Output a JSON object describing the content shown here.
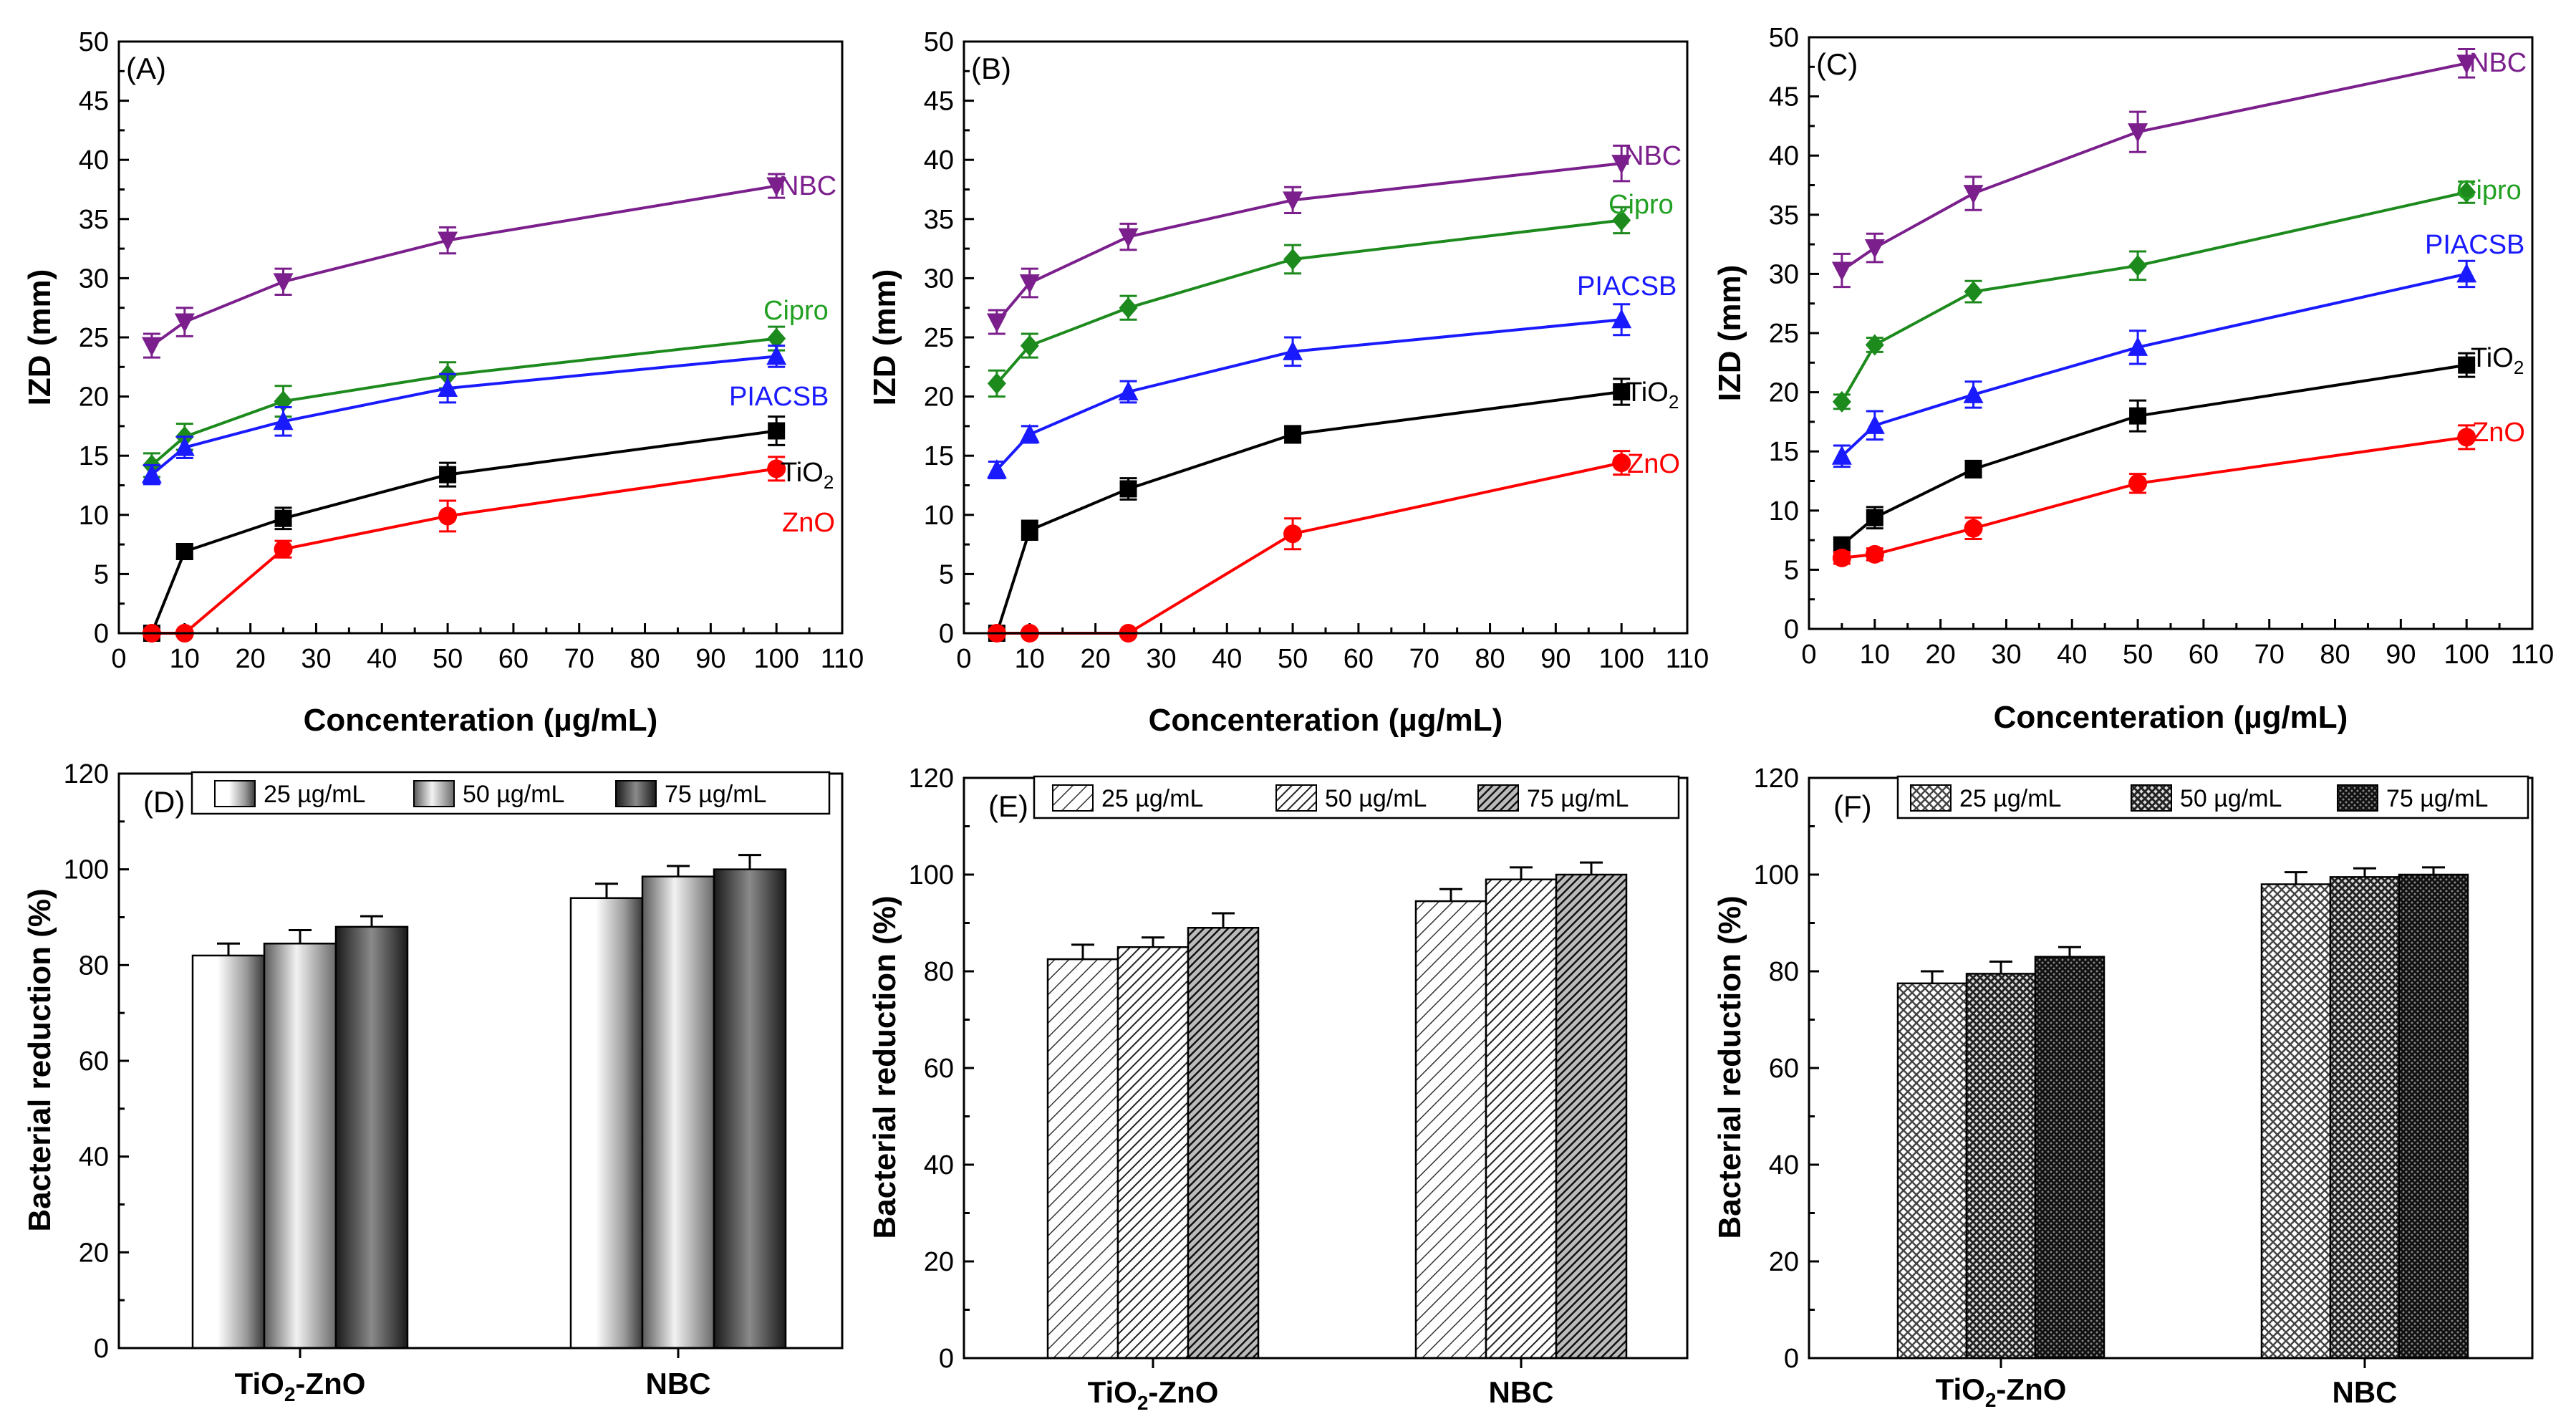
{
  "line_panels": [
    {
      "panel_label": "(A)",
      "ylabel": "IZD (mm)",
      "xlabel": "Concenteration (µg/mL)",
      "yticks": [
        "0",
        "5",
        "10",
        "15",
        "20",
        "25",
        "30",
        "35",
        "40",
        "45",
        "50"
      ],
      "xticks": [
        "0",
        "10",
        "20",
        "30",
        "40",
        "50",
        "60",
        "70",
        "80",
        "90",
        "100",
        "110"
      ],
      "series_labels": [
        "NBC",
        "Cipro",
        "PIACSB",
        "TiO",
        "ZnO"
      ]
    },
    {
      "panel_label": "(B)",
      "ylabel": "IZD (mm)",
      "xlabel": "Concenteration (µg/mL)",
      "yticks": [
        "0",
        "5",
        "10",
        "15",
        "20",
        "25",
        "30",
        "35",
        "40",
        "45",
        "50"
      ],
      "xticks": [
        "0",
        "10",
        "20",
        "30",
        "40",
        "50",
        "60",
        "70",
        "80",
        "90",
        "100",
        "110"
      ],
      "series_labels": [
        "NBC",
        "Cipro",
        "PIACSB",
        "TiO",
        "ZnO"
      ]
    },
    {
      "panel_label": "(C)",
      "ylabel": "IZD (mm)",
      "xlabel": "Concenteration (µg/mL)",
      "yticks": [
        "0",
        "5",
        "10",
        "15",
        "20",
        "25",
        "30",
        "35",
        "40",
        "45",
        "50"
      ],
      "xticks": [
        "0",
        "10",
        "20",
        "30",
        "40",
        "50",
        "60",
        "70",
        "80",
        "90",
        "100",
        "110"
      ],
      "series_labels": [
        "NBC",
        "Cipro",
        "PIACSB",
        "TiO",
        "ZnO"
      ]
    }
  ],
  "bar_panels": [
    {
      "panel_label": "(D)",
      "ylabel": "Bacterial reduction (%)",
      "yticks": [
        "0",
        "20",
        "40",
        "60",
        "80",
        "100",
        "120"
      ],
      "categories": [
        "TiO",
        "NBC"
      ],
      "category_parts": [
        {
          "base": "TiO",
          "sub": "2",
          "rest": "-ZnO"
        },
        {
          "base": "NBC",
          "sub": "",
          "rest": ""
        }
      ],
      "legend": [
        "25 µg/mL",
        "50 µg/mL",
        "75 µg/mL"
      ]
    },
    {
      "panel_label": "(E)",
      "ylabel": "Bacterial reduction (%)",
      "yticks": [
        "0",
        "20",
        "40",
        "60",
        "80",
        "100",
        "120"
      ],
      "categories": [
        "TiO",
        "NBC"
      ],
      "category_parts": [
        {
          "base": "TiO",
          "sub": "2",
          "rest": "-ZnO"
        },
        {
          "base": "NBC",
          "sub": "",
          "rest": ""
        }
      ],
      "legend": [
        "25 µg/mL",
        "50 µg/mL",
        "75 µg/mL"
      ]
    },
    {
      "panel_label": "(F)",
      "ylabel": "Bacterial reduction (%)",
      "yticks": [
        "0",
        "20",
        "40",
        "60",
        "80",
        "100",
        "120"
      ],
      "categories": [
        "TiO",
        "NBC"
      ],
      "category_parts": [
        {
          "base": "TiO",
          "sub": "2",
          "rest": "-ZnO"
        },
        {
          "base": "NBC",
          "sub": "",
          "rest": ""
        }
      ],
      "legend": [
        "25 µg/mL",
        "50 µg/mL",
        "75 µg/mL"
      ]
    }
  ],
  "colors": {
    "NBC": "#7b1f8c",
    "Cipro": "#1d8a1d",
    "PIACSB": "#1a1aff",
    "TiO2": "#000000",
    "ZnO": "#ff0000",
    "Cipro_label": "#22a022"
  },
  "chart_data": [
    {
      "type": "line",
      "panel": "(A)",
      "xlabel": "Concenteration (µg/mL)",
      "ylabel": "IZD (mm)",
      "xlim": [
        0,
        110
      ],
      "ylim": [
        0,
        50
      ],
      "x": [
        5,
        10,
        25,
        50,
        100
      ],
      "series": [
        {
          "name": "NBC",
          "marker": "triangle-down",
          "values": [
            24.3,
            26.3,
            29.7,
            33.2,
            37.8
          ],
          "errors": [
            1.0,
            1.2,
            1.1,
            1.1,
            1.0
          ]
        },
        {
          "name": "Cipro",
          "marker": "diamond",
          "values": [
            14.2,
            16.6,
            19.6,
            21.8,
            24.9
          ],
          "errors": [
            1.0,
            1.1,
            1.3,
            1.1,
            1.0
          ]
        },
        {
          "name": "PIACSB",
          "marker": "triangle-up",
          "values": [
            13.4,
            15.7,
            17.9,
            20.7,
            23.4
          ],
          "errors": [
            0.8,
            0.9,
            1.2,
            1.2,
            0.9
          ]
        },
        {
          "name": "TiO2",
          "marker": "square",
          "values": [
            0,
            6.9,
            9.7,
            13.4,
            17.1
          ],
          "errors": [
            0,
            0.6,
            0.9,
            1.0,
            1.2
          ]
        },
        {
          "name": "ZnO",
          "marker": "circle",
          "values": [
            0,
            0,
            7.1,
            9.9,
            13.9
          ],
          "errors": [
            0,
            0,
            0.7,
            1.3,
            1.0
          ]
        }
      ]
    },
    {
      "type": "line",
      "panel": "(B)",
      "xlabel": "Concenteration (µg/mL)",
      "ylabel": "IZD (mm)",
      "xlim": [
        0,
        110
      ],
      "ylim": [
        0,
        50
      ],
      "x": [
        5,
        10,
        25,
        50,
        100
      ],
      "series": [
        {
          "name": "NBC",
          "marker": "triangle-down",
          "values": [
            26.3,
            29.6,
            33.5,
            36.6,
            39.7
          ],
          "errors": [
            1.0,
            1.2,
            1.1,
            1.1,
            1.5
          ]
        },
        {
          "name": "Cipro",
          "marker": "diamond",
          "values": [
            21.1,
            24.3,
            27.5,
            31.6,
            34.9
          ],
          "errors": [
            1.1,
            1.0,
            1.0,
            1.2,
            1.1
          ]
        },
        {
          "name": "PIACSB",
          "marker": "triangle-up",
          "values": [
            13.8,
            16.8,
            20.4,
            23.8,
            26.5
          ],
          "errors": [
            0.7,
            0.7,
            0.9,
            1.2,
            1.3
          ]
        },
        {
          "name": "TiO2",
          "marker": "square",
          "values": [
            0,
            8.7,
            12.2,
            16.8,
            20.4
          ],
          "errors": [
            0,
            0.8,
            0.9,
            0.7,
            1.1
          ]
        },
        {
          "name": "ZnO",
          "marker": "circle",
          "values": [
            0,
            0,
            0,
            8.4,
            14.4
          ],
          "errors": [
            0,
            0,
            0,
            1.3,
            1.0
          ]
        }
      ]
    },
    {
      "type": "line",
      "panel": "(C)",
      "xlabel": "Concenteration (µg/mL)",
      "ylabel": "IZD (mm)",
      "xlim": [
        0,
        110
      ],
      "ylim": [
        0,
        50
      ],
      "x": [
        5,
        10,
        25,
        50,
        100
      ],
      "series": [
        {
          "name": "NBC",
          "marker": "triangle-down",
          "values": [
            30.3,
            32.2,
            36.8,
            42.0,
            47.8
          ],
          "errors": [
            1.4,
            1.2,
            1.4,
            1.7,
            1.2
          ]
        },
        {
          "name": "Cipro",
          "marker": "diamond",
          "values": [
            19.2,
            24.0,
            28.5,
            30.7,
            36.9
          ],
          "errors": [
            0.6,
            0.6,
            0.9,
            1.2,
            0.9
          ]
        },
        {
          "name": "PIACSB",
          "marker": "triangle-up",
          "values": [
            14.6,
            17.2,
            19.8,
            23.8,
            30.0
          ],
          "errors": [
            0.9,
            1.2,
            1.1,
            1.4,
            1.1
          ]
        },
        {
          "name": "TiO2",
          "marker": "square",
          "values": [
            7.1,
            9.4,
            13.5,
            18.0,
            22.3
          ],
          "errors": [
            0.5,
            0.9,
            0.7,
            1.3,
            1.0
          ]
        },
        {
          "name": "ZnO",
          "marker": "circle",
          "values": [
            6.0,
            6.3,
            8.5,
            12.3,
            16.2
          ],
          "errors": [
            0.5,
            0.5,
            0.9,
            0.8,
            1.0
          ]
        }
      ]
    },
    {
      "type": "bar",
      "panel": "(D)",
      "ylabel": "Bacterial reduction (%)",
      "ylim": [
        0,
        120
      ],
      "categories": [
        "TiO2-ZnO",
        "NBC"
      ],
      "series": [
        {
          "name": "25 µg/mL",
          "values": [
            82.0,
            94.0
          ],
          "errors": [
            2.5,
            3.0
          ]
        },
        {
          "name": "50 µg/mL",
          "values": [
            84.5,
            98.5
          ],
          "errors": [
            2.8,
            2.2
          ]
        },
        {
          "name": "75 µg/mL",
          "values": [
            88.0,
            100.0
          ],
          "errors": [
            2.2,
            3.0
          ]
        }
      ]
    },
    {
      "type": "bar",
      "panel": "(E)",
      "ylabel": "Bacterial reduction (%)",
      "ylim": [
        0,
        120
      ],
      "categories": [
        "TiO2-ZnO",
        "NBC"
      ],
      "series": [
        {
          "name": "25 µg/mL",
          "values": [
            82.5,
            94.5
          ],
          "errors": [
            3.0,
            2.5
          ]
        },
        {
          "name": "50 µg/mL",
          "values": [
            85.0,
            99.0
          ],
          "errors": [
            2.0,
            2.5
          ]
        },
        {
          "name": "75 µg/mL",
          "values": [
            89.0,
            100.0
          ],
          "errors": [
            3.0,
            2.5
          ]
        }
      ]
    },
    {
      "type": "bar",
      "panel": "(F)",
      "ylabel": "Bacterial reduction (%)",
      "ylim": [
        0,
        120
      ],
      "categories": [
        "TiO2-ZnO",
        "NBC"
      ],
      "series": [
        {
          "name": "25 µg/mL",
          "values": [
            77.5,
            98.0
          ],
          "errors": [
            2.5,
            2.5
          ]
        },
        {
          "name": "50 µg/mL",
          "values": [
            79.5,
            99.5
          ],
          "errors": [
            2.5,
            1.8
          ]
        },
        {
          "name": "75 µg/mL",
          "values": [
            83.0,
            100.0
          ],
          "errors": [
            2.0,
            1.5
          ]
        }
      ]
    }
  ]
}
